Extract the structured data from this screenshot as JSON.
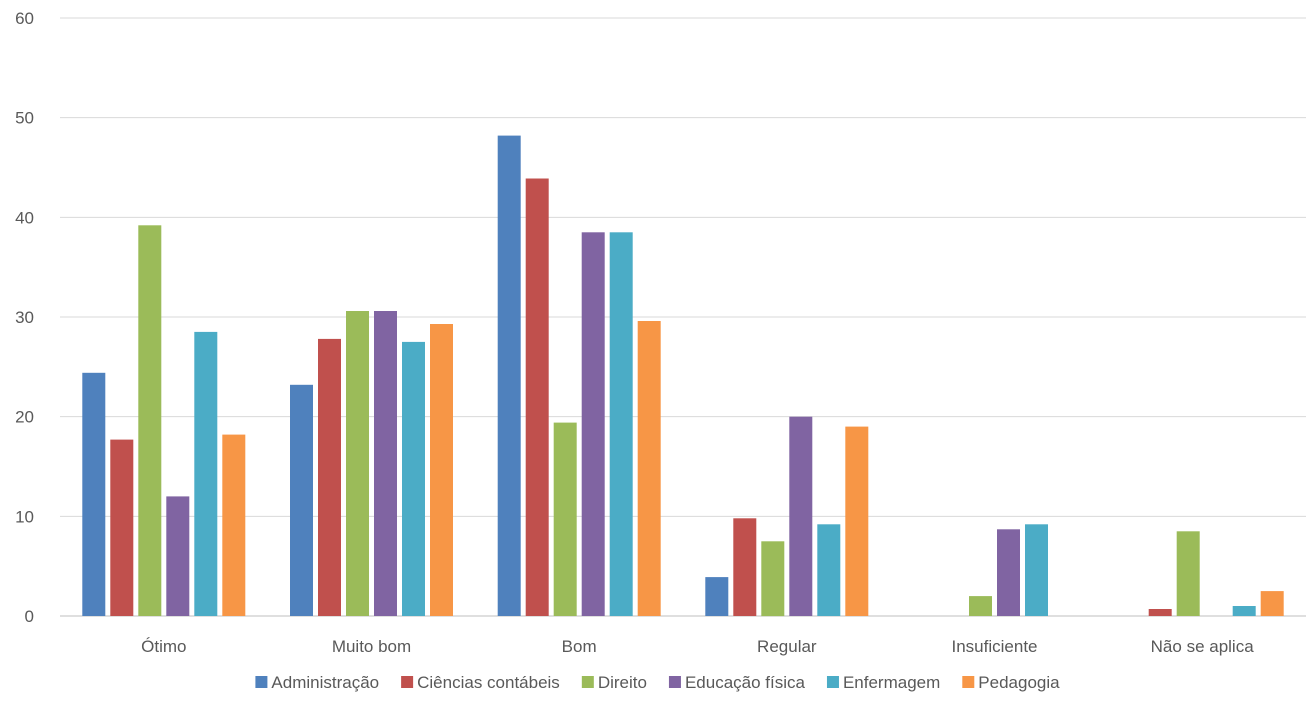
{
  "chart_data": {
    "type": "bar",
    "categories": [
      "Ótimo",
      "Muito bom",
      "Bom",
      "Regular",
      "Insuficiente",
      "Não se aplica"
    ],
    "series": [
      {
        "name": "Administração",
        "color": "#4F81BD",
        "values": [
          24.4,
          23.2,
          48.2,
          3.9,
          0,
          0
        ]
      },
      {
        "name": "Ciências contábeis",
        "color": "#C0504D",
        "values": [
          17.7,
          27.8,
          43.9,
          9.8,
          0,
          0.7
        ]
      },
      {
        "name": "Direito",
        "color": "#9BBB59",
        "values": [
          39.2,
          30.6,
          19.4,
          7.5,
          2.0,
          8.5
        ]
      },
      {
        "name": "Educação física",
        "color": "#8064A2",
        "values": [
          12.0,
          30.6,
          38.5,
          20.0,
          8.7,
          0
        ]
      },
      {
        "name": "Enfermagem",
        "color": "#4BACC6",
        "values": [
          28.5,
          27.5,
          38.5,
          9.2,
          9.2,
          1.0
        ]
      },
      {
        "name": "Pedagogia",
        "color": "#F79646",
        "values": [
          18.2,
          29.3,
          29.6,
          19.0,
          0,
          2.5
        ]
      }
    ],
    "ylim": [
      0,
      60
    ],
    "yticks": [
      "0",
      "10",
      "20",
      "30",
      "40",
      "50",
      "60"
    ],
    "grid": true,
    "legend": "bottom",
    "title": "",
    "xlabel": "",
    "ylabel": ""
  }
}
